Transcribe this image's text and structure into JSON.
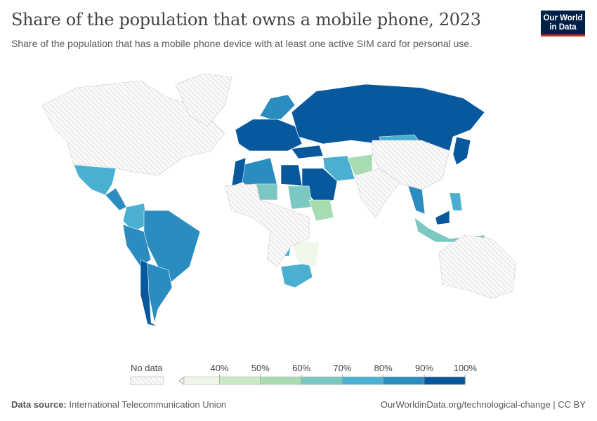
{
  "header": {
    "title": "Share of the population that owns a mobile phone, 2023",
    "subtitle": "Share of the population that has a mobile phone device with at least one active SIM card for personal use.",
    "logo_line1": "Our World",
    "logo_line2": "in Data"
  },
  "legend": {
    "no_data_label": "No data",
    "ticks": [
      "40%",
      "50%",
      "60%",
      "70%",
      "80%",
      "90%",
      "100%"
    ],
    "colors": [
      "#eef7e8",
      "#cce9c5",
      "#a7dcb2",
      "#7ac8c1",
      "#4bafd1",
      "#2a8cbf",
      "#08589e"
    ],
    "no_data_color": "#dddddd"
  },
  "map_regions": [
    {
      "region": "North America",
      "bin": "no-data"
    },
    {
      "region": "Greenland",
      "bin": "no-data"
    },
    {
      "region": "Mexico",
      "bin": "70-80%"
    },
    {
      "region": "Central America",
      "bin": "80-90%"
    },
    {
      "region": "Colombia",
      "bin": "70-80%"
    },
    {
      "region": "Brazil",
      "bin": "80-90%"
    },
    {
      "region": "Peru",
      "bin": "80-90%"
    },
    {
      "region": "Chile",
      "bin": "90-100%"
    },
    {
      "region": "Argentina",
      "bin": "80-90%"
    },
    {
      "region": "Europe West",
      "bin": "90-100%"
    },
    {
      "region": "Scandinavia",
      "bin": "80-90%"
    },
    {
      "region": "Russia",
      "bin": "90-100%"
    },
    {
      "region": "Turkey",
      "bin": "90-100%"
    },
    {
      "region": "Iran",
      "bin": "70-80%"
    },
    {
      "region": "Saudi Arabia",
      "bin": "90-100%"
    },
    {
      "region": "Egypt",
      "bin": "90-100%"
    },
    {
      "region": "Algeria",
      "bin": "80-90%"
    },
    {
      "region": "Morocco",
      "bin": "90-100%"
    },
    {
      "region": "Niger",
      "bin": "60-70%"
    },
    {
      "region": "Sudan",
      "bin": "60-70%"
    },
    {
      "region": "Ethiopia",
      "bin": "50-60%"
    },
    {
      "region": "Angola",
      "bin": "70-80%"
    },
    {
      "region": "South Africa",
      "bin": "70-80%"
    },
    {
      "region": "Zambia",
      "bin": "<40%"
    },
    {
      "region": "Afghanistan",
      "bin": "50-60%"
    },
    {
      "region": "Thailand",
      "bin": "80-90%"
    },
    {
      "region": "Indonesia",
      "bin": "60-70%"
    },
    {
      "region": "Malaysia",
      "bin": "90-100%"
    },
    {
      "region": "Philippines",
      "bin": "70-80%"
    },
    {
      "region": "Japan",
      "bin": "90-100%"
    },
    {
      "region": "Mongolia",
      "bin": "70-80%"
    },
    {
      "region": "China",
      "bin": "no-data"
    },
    {
      "region": "India",
      "bin": "no-data"
    },
    {
      "region": "Australia",
      "bin": "no-data"
    },
    {
      "region": "Central Africa",
      "bin": "no-data"
    }
  ],
  "footer": {
    "source_label": "Data source:",
    "source": "International Telecommunication Union",
    "link": "OurWorldinData.org/technological-change | CC BY"
  }
}
